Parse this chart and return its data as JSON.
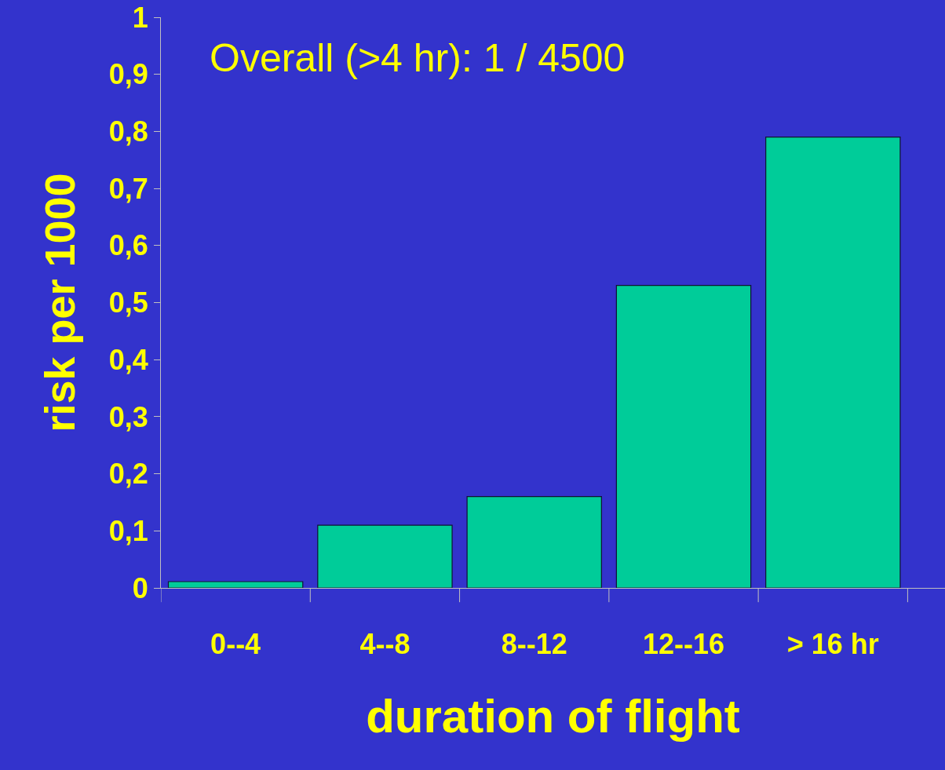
{
  "chart_data": {
    "type": "bar",
    "xlabel": "duration of flight",
    "ylabel": "risk per 1000",
    "categories": [
      "0--4",
      "4--8",
      "8--12",
      "12--16",
      "> 16 hr"
    ],
    "values": [
      0.011,
      0.11,
      0.16,
      0.53,
      0.79
    ],
    "color": "#00cc99",
    "ylim": [
      0,
      1
    ],
    "yticks": [
      0,
      {
        "value": 0.1,
        "label": "0,1"
      },
      {
        "value": 0.2,
        "label": "0,2"
      },
      {
        "value": 0.3,
        "label": "0,3"
      },
      {
        "value": 0.4,
        "label": "0,4"
      },
      {
        "value": 0.5,
        "label": "0,5"
      },
      {
        "value": 0.6,
        "label": "0,6"
      },
      {
        "value": 0.7,
        "label": "0,7"
      },
      {
        "value": 0.8,
        "label": "0,8"
      },
      {
        "value": 0.9,
        "label": "0,9"
      },
      1
    ],
    "annotations": [
      "Overall (>4 hr): 1 / 4500"
    ],
    "grid": false,
    "legend": false
  }
}
